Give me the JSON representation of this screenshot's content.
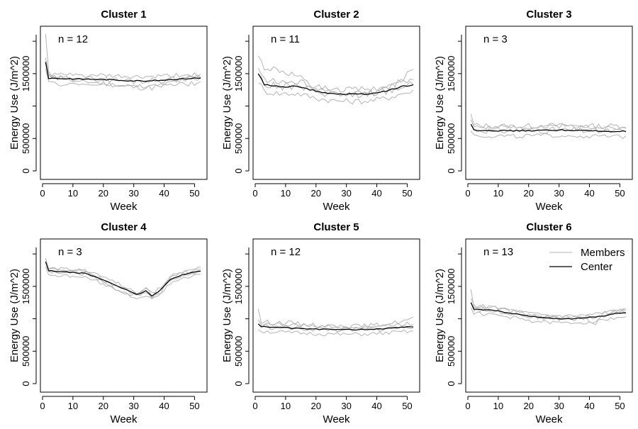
{
  "chart_data": {
    "type": "line",
    "layout": "2x3 small multiples",
    "xlabel": "Week",
    "ylabel": "Energy Use (J/m^2)",
    "xlim": [
      0,
      52
    ],
    "ylim": [
      0,
      2100000
    ],
    "x_ticks": [
      0,
      10,
      20,
      30,
      40,
      50
    ],
    "y_ticks": [
      0,
      500000,
      1500000
    ],
    "grid": false,
    "legend": {
      "placement": "top-right of Cluster 6",
      "entries": [
        {
          "label": "Members",
          "color": "#b4b4b4"
        },
        {
          "label": "Center",
          "color": "#000000"
        }
      ]
    },
    "colors": {
      "members": "#b4b4b4",
      "center": "#000000"
    },
    "panels": [
      {
        "title": "Cluster 1",
        "n_label": "n = 12",
        "center_points": [
          [
            1,
            1680000
          ],
          [
            2,
            1430000
          ],
          [
            10,
            1420000
          ],
          [
            20,
            1410000
          ],
          [
            30,
            1390000
          ],
          [
            36,
            1390000
          ],
          [
            42,
            1410000
          ],
          [
            50,
            1430000
          ],
          [
            52,
            1430000
          ]
        ],
        "member_spread": 70000,
        "member_points": [
          [
            1,
            2100000
          ],
          [
            2,
            1500000
          ],
          [
            10,
            1400000
          ],
          [
            20,
            1350000
          ],
          [
            30,
            1290000
          ],
          [
            36,
            1280000
          ],
          [
            42,
            1360000
          ],
          [
            50,
            1450000
          ],
          [
            52,
            1460000
          ]
        ]
      },
      {
        "title": "Cluster 2",
        "n_label": "n = 11",
        "center_points": [
          [
            1,
            1500000
          ],
          [
            3,
            1330000
          ],
          [
            8,
            1300000
          ],
          [
            14,
            1300000
          ],
          [
            20,
            1230000
          ],
          [
            26,
            1190000
          ],
          [
            32,
            1180000
          ],
          [
            38,
            1190000
          ],
          [
            44,
            1240000
          ],
          [
            48,
            1300000
          ],
          [
            52,
            1330000
          ]
        ],
        "member_spread": 90000,
        "member_points": [
          [
            1,
            1750000
          ],
          [
            3,
            1600000
          ],
          [
            8,
            1550000
          ],
          [
            14,
            1450000
          ],
          [
            20,
            1250000
          ],
          [
            26,
            1180000
          ],
          [
            32,
            1170000
          ],
          [
            38,
            1200000
          ],
          [
            44,
            1280000
          ],
          [
            48,
            1400000
          ],
          [
            52,
            1600000
          ]
        ]
      },
      {
        "title": "Cluster 3",
        "n_label": "n = 3",
        "center_points": [
          [
            1,
            720000
          ],
          [
            2,
            630000
          ],
          [
            10,
            620000
          ],
          [
            20,
            620000
          ],
          [
            30,
            630000
          ],
          [
            40,
            620000
          ],
          [
            45,
            610000
          ],
          [
            52,
            610000
          ]
        ],
        "member_spread": 70000,
        "member_points": [
          [
            1,
            860000
          ],
          [
            2,
            700000
          ],
          [
            10,
            690000
          ],
          [
            20,
            690000
          ],
          [
            30,
            700000
          ],
          [
            40,
            690000
          ],
          [
            45,
            690000
          ],
          [
            52,
            700000
          ]
        ]
      },
      {
        "title": "Cluster 4",
        "n_label": "n = 3",
        "center_points": [
          [
            1,
            1880000
          ],
          [
            2,
            1740000
          ],
          [
            8,
            1720000
          ],
          [
            14,
            1700000
          ],
          [
            20,
            1600000
          ],
          [
            26,
            1480000
          ],
          [
            31,
            1370000
          ],
          [
            34,
            1430000
          ],
          [
            36,
            1350000
          ],
          [
            39,
            1450000
          ],
          [
            42,
            1610000
          ],
          [
            46,
            1680000
          ],
          [
            50,
            1720000
          ],
          [
            52,
            1740000
          ]
        ],
        "member_spread": 50000,
        "member_points": [
          [
            1,
            1910000
          ],
          [
            2,
            1780000
          ],
          [
            8,
            1760000
          ],
          [
            14,
            1740000
          ],
          [
            20,
            1560000
          ],
          [
            26,
            1420000
          ],
          [
            31,
            1340000
          ],
          [
            34,
            1500000
          ],
          [
            36,
            1330000
          ],
          [
            39,
            1400000
          ],
          [
            42,
            1650000
          ],
          [
            46,
            1700000
          ],
          [
            50,
            1760000
          ],
          [
            52,
            1770000
          ]
        ]
      },
      {
        "title": "Cluster 5",
        "n_label": "n = 12",
        "center_points": [
          [
            1,
            920000
          ],
          [
            2,
            880000
          ],
          [
            10,
            860000
          ],
          [
            20,
            840000
          ],
          [
            30,
            830000
          ],
          [
            40,
            840000
          ],
          [
            46,
            860000
          ],
          [
            52,
            880000
          ]
        ],
        "member_spread": 60000,
        "member_points": [
          [
            1,
            1130000
          ],
          [
            2,
            950000
          ],
          [
            10,
            940000
          ],
          [
            20,
            900000
          ],
          [
            30,
            880000
          ],
          [
            40,
            900000
          ],
          [
            46,
            940000
          ],
          [
            52,
            1000000
          ]
        ]
      },
      {
        "title": "Cluster 6",
        "n_label": "n = 13",
        "center_points": [
          [
            1,
            1250000
          ],
          [
            2,
            1150000
          ],
          [
            8,
            1130000
          ],
          [
            14,
            1090000
          ],
          [
            20,
            1040000
          ],
          [
            26,
            1010000
          ],
          [
            32,
            1000000
          ],
          [
            38,
            1010000
          ],
          [
            44,
            1040000
          ],
          [
            48,
            1080000
          ],
          [
            52,
            1100000
          ]
        ],
        "member_spread": 55000,
        "member_points": [
          [
            1,
            1430000
          ],
          [
            2,
            1200000
          ],
          [
            8,
            1180000
          ],
          [
            14,
            1120000
          ],
          [
            20,
            1060000
          ],
          [
            26,
            1030000
          ],
          [
            32,
            1020000
          ],
          [
            38,
            1030000
          ],
          [
            42,
            920000
          ],
          [
            44,
            1080000
          ],
          [
            48,
            1120000
          ],
          [
            52,
            1140000
          ]
        ]
      }
    ]
  }
}
